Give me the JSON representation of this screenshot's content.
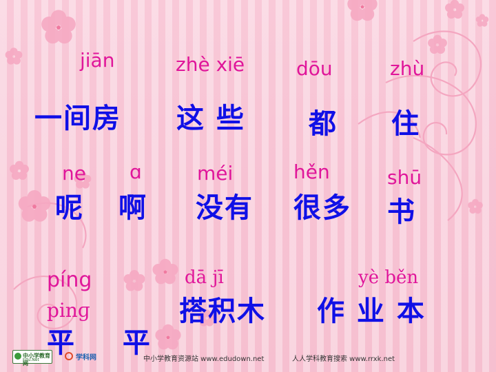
{
  "rows": [
    {
      "items": [
        {
          "pinyin": "jiān",
          "hanzi": "一间房"
        },
        {
          "pinyin": "zhè xiē",
          "hanzi": "这 些"
        },
        {
          "pinyin": "dōu",
          "hanzi": "都"
        },
        {
          "pinyin": "zhù",
          "hanzi": "住"
        }
      ]
    },
    {
      "items": [
        {
          "pinyin": "ne",
          "hanzi": "呢"
        },
        {
          "pinyin": "ɑ",
          "hanzi": "啊"
        },
        {
          "pinyin": "méi",
          "hanzi": "没有"
        },
        {
          "pinyin": "hěn",
          "hanzi": "很多"
        },
        {
          "pinyin": "shū",
          "hanzi": "书"
        }
      ]
    },
    {
      "items": [
        {
          "pinyin": "píng",
          "pinyin2": "pinɡ",
          "hanzi": "平 平"
        },
        {
          "pinyin": "dā jī",
          "hanzi": "搭积木"
        },
        {
          "pinyin": "yè běn",
          "hanzi": "作 业 本"
        }
      ]
    }
  ],
  "footer": {
    "logo1_text": "中小学教育网",
    "logo1_sub": "Edu.Net",
    "logo2_text": "学科网",
    "source1": "中小学教育资源站 www.edudown.net",
    "source2": "人人学科教育搜索 www.rrxk.net"
  },
  "colors": {
    "pinyin": "#e0169a",
    "hanzi": "#1010e6",
    "background": "#f7c2d3",
    "flower": "#f07aa0"
  },
  "decor_icons": [
    "cherry-blossom-icon",
    "swirl-vine-icon"
  ]
}
